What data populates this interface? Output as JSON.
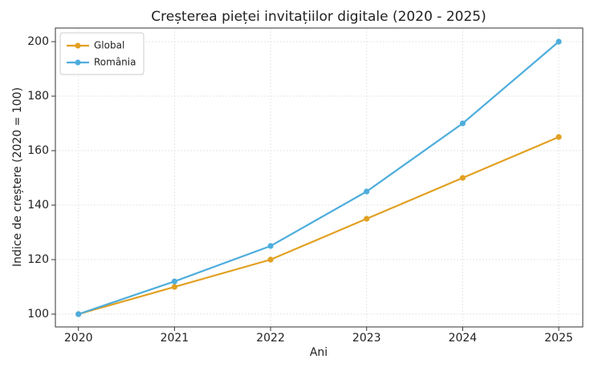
{
  "chart_data": {
    "type": "line",
    "title": "Creșterea pieței invitațiilor digitale (2020 - 2025)",
    "x_label": "Ani",
    "y_label": "Indice de creștere (2020 = 100)",
    "x": [
      2020,
      2021,
      2022,
      2023,
      2024,
      2025
    ],
    "series": [
      {
        "name": "Global",
        "color": "#e1a021",
        "values": [
          100,
          110,
          120,
          135,
          150,
          165
        ]
      },
      {
        "name": "România",
        "color": "#4eaddc",
        "values": [
          100,
          112,
          125,
          145,
          170,
          200
        ]
      }
    ],
    "xlim": [
      2019.76,
      2025.25
    ],
    "xticks": [
      2020,
      2021,
      2022,
      2023,
      2024,
      2025
    ],
    "ylim": [
      95.3,
      205
    ],
    "yticks": [
      100,
      120,
      140,
      160,
      180,
      200
    ],
    "grid": true,
    "legend": "upper left"
  }
}
